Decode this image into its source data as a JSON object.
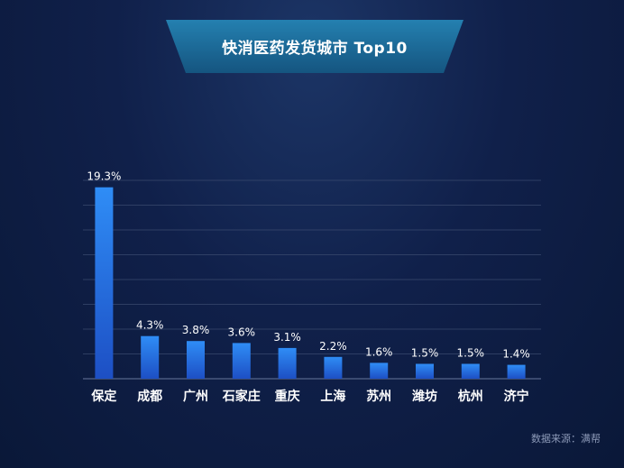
{
  "title": "快消医药发货城市 Top10",
  "source": "数据来源：满帮",
  "colors": {
    "background": "#0e1d44",
    "banner": "#1b6b97",
    "bar_top": "#2f8df6",
    "bar_bottom": "#1d4fc4",
    "grid": "#3a4a6e"
  },
  "chart_data": {
    "type": "bar",
    "categories": [
      "保定",
      "成都",
      "广州",
      "石家庄",
      "重庆",
      "上海",
      "苏州",
      "潍坊",
      "杭州",
      "济宁"
    ],
    "values": [
      19.3,
      4.3,
      3.8,
      3.6,
      3.1,
      2.2,
      1.6,
      1.5,
      1.5,
      1.4
    ],
    "value_labels": [
      "19.3%",
      "4.3%",
      "3.8%",
      "3.6%",
      "3.1%",
      "2.2%",
      "1.6%",
      "1.5%",
      "1.5%",
      "1.4%"
    ],
    "ylim": [
      0,
      20
    ],
    "grid": true,
    "legend": "none"
  }
}
